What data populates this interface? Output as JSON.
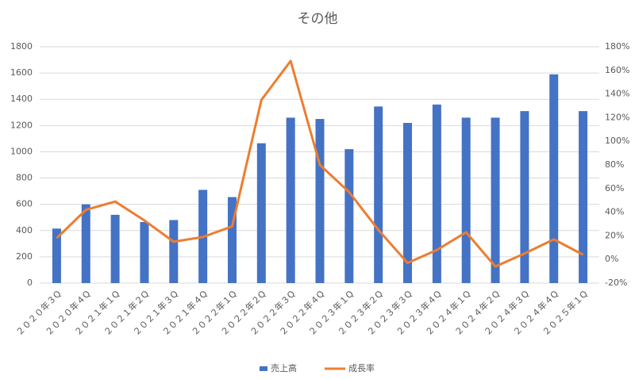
{
  "chart_data": {
    "type": "bar-line",
    "title": "その他",
    "categories": [
      "２０２０年３Q",
      "２０２０年４Q",
      "２０２１年１Q",
      "２０２１年２Q",
      "２０２１年３Q",
      "２０２１年４Q",
      "２０２２年１Q",
      "２０２２年２Q",
      "２０２２年３Q",
      "２０２２年４Q",
      "２０２３年１Q",
      "２０２３年２Q",
      "２０２３年３Q",
      "２０２３年４Q",
      "２０２４年１Q",
      "２０２４年２Q",
      "２０２４年３Q",
      "２０２４年４Q",
      "２０２５年１Q"
    ],
    "series": [
      {
        "name": "売上高",
        "type": "bar",
        "color": "#4472c4",
        "values": [
          415,
          600,
          520,
          465,
          480,
          710,
          655,
          1065,
          1260,
          1250,
          1020,
          1345,
          1220,
          1360,
          1260,
          1260,
          1310,
          1590,
          1310
        ]
      },
      {
        "name": "成長率",
        "type": "line",
        "axis": "y2",
        "color": "#ed7d31",
        "values": [
          18,
          42,
          49,
          33,
          15,
          19,
          28,
          135,
          168,
          80,
          57,
          25,
          -3,
          8,
          23,
          -6,
          5,
          17,
          4
        ]
      }
    ],
    "ylim": [
      0,
      1800
    ],
    "yticks": [
      0,
      200,
      400,
      600,
      800,
      1000,
      1200,
      1400,
      1600,
      1800
    ],
    "y2lim": [
      -20,
      180
    ],
    "y2ticks": [
      {
        "value": -20,
        "label": "-20%"
      },
      {
        "value": 0,
        "label": "0%"
      },
      {
        "value": 20,
        "label": "20%"
      },
      {
        "value": 40,
        "label": "40%"
      },
      {
        "value": 60,
        "label": "60%"
      },
      {
        "value": 80,
        "label": "80%"
      },
      {
        "value": 100,
        "label": "100%"
      },
      {
        "value": 120,
        "label": "120%"
      },
      {
        "value": 140,
        "label": "140%"
      },
      {
        "value": 160,
        "label": "160%"
      },
      {
        "value": 180,
        "label": "180%"
      }
    ],
    "grid": true,
    "legend": "bottom"
  }
}
